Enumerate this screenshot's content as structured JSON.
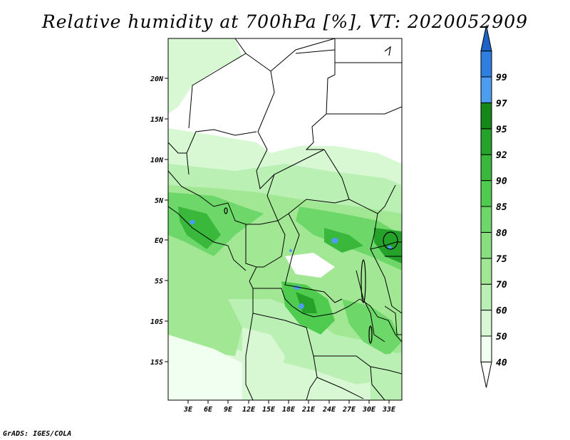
{
  "title": "Relative humidity at 700hPa [%], VT: 2020052909",
  "credit": "GrADS: IGES/COLA",
  "map": {
    "lat_labels": [
      "20N",
      "15N",
      "10N",
      "5N",
      "EQ",
      "5S",
      "10S",
      "15S"
    ],
    "lon_labels": [
      "3E",
      "6E",
      "9E",
      "12E",
      "15E",
      "18E",
      "21E",
      "24E",
      "27E",
      "30E",
      "33E"
    ]
  },
  "colorbar": {
    "labels": [
      "40",
      "50",
      "60",
      "70",
      "75",
      "80",
      "85",
      "90",
      "92",
      "95",
      "97",
      "99"
    ],
    "colors": [
      "#f0fff0",
      "#d8f8d4",
      "#bbf0b5",
      "#a2e894",
      "#88df7e",
      "#6ed769",
      "#4fcc4f",
      "#3ab83c",
      "#24a22a",
      "#14891a",
      "#4c9cf0",
      "#2e7fe0",
      "#1e63c8"
    ]
  }
}
